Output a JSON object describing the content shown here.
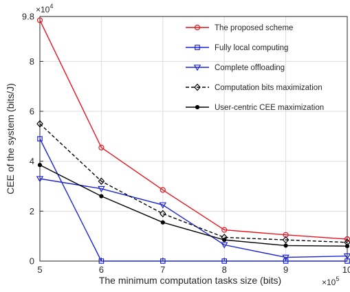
{
  "chart_data": {
    "type": "line",
    "xlabel": "The minimum computation tasks size (bits)",
    "ylabel": "CEE of the system (bits/J)",
    "x_exponent_label": "×10",
    "x_exponent_power": "5",
    "y_exponent_label": "×10",
    "y_exponent_power": "4",
    "xlim": [
      5,
      10
    ],
    "ylim": [
      0,
      9.8
    ],
    "grid": true,
    "legend_position": "top-right",
    "x": [
      5,
      6,
      7,
      8,
      9,
      10
    ],
    "x_ticks": [
      "5",
      "6",
      "7",
      "8",
      "9",
      "10"
    ],
    "y_ticks": [
      {
        "value": 0,
        "label": "0"
      },
      {
        "value": 2,
        "label": "2"
      },
      {
        "value": 4,
        "label": "4"
      },
      {
        "value": 6,
        "label": "6"
      },
      {
        "value": 8,
        "label": "8"
      },
      {
        "value": 9.8,
        "label": "9.8"
      }
    ],
    "series": [
      {
        "name": "The proposed scheme",
        "color": "#e8141e",
        "dash": "solid",
        "marker": "circle",
        "values": [
          9.65,
          4.55,
          2.85,
          1.25,
          1.05,
          0.88
        ]
      },
      {
        "name": "Fully local computing",
        "color": "#1a22d6",
        "dash": "solid",
        "marker": "square",
        "values": [
          4.9,
          0.0,
          0.0,
          0.0,
          0.0,
          0.0
        ]
      },
      {
        "name": "Complete offloading",
        "color": "#1a22d6",
        "dash": "solid",
        "marker": "triangle-down",
        "values": [
          3.3,
          2.9,
          2.25,
          0.65,
          0.15,
          0.2
        ]
      },
      {
        "name": "Computation bits maximization",
        "color": "#000000",
        "dash": "dashed",
        "marker": "diamond",
        "values": [
          5.5,
          3.2,
          1.9,
          0.95,
          0.85,
          0.75
        ]
      },
      {
        "name": "User-centric CEE maximization",
        "color": "#000000",
        "dash": "solid",
        "marker": "dot",
        "values": [
          3.85,
          2.6,
          1.55,
          0.85,
          0.62,
          0.6
        ]
      }
    ]
  }
}
